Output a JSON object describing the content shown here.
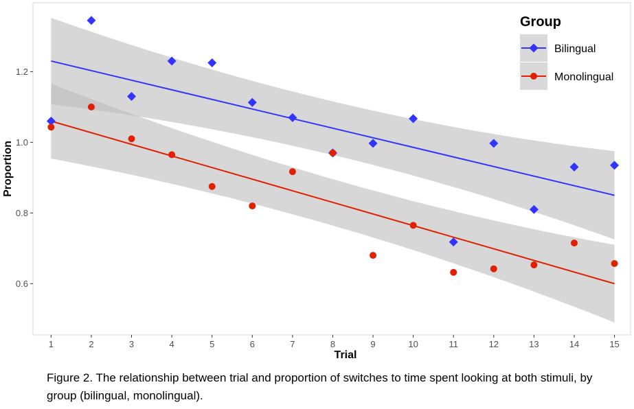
{
  "chart_data": {
    "type": "scatter",
    "title": "",
    "xlabel": "Trial",
    "ylabel": "Proportion",
    "x_ticks": [
      1,
      2,
      3,
      4,
      5,
      6,
      7,
      8,
      9,
      10,
      11,
      12,
      13,
      14,
      15
    ],
    "y_ticks": [
      0.6,
      0.8,
      1.0,
      1.2
    ],
    "y_tick_labels": [
      "0.6",
      "0.8",
      "1.0",
      "1.2"
    ],
    "xlim": [
      0.55,
      15.4
    ],
    "ylim": [
      0.455,
      1.395
    ],
    "grid": false,
    "legend": {
      "title": "Group",
      "placement": "top-right"
    },
    "series": [
      {
        "name": "Bilingual",
        "color": "#3333ff",
        "marker": "diamond",
        "x": [
          1,
          2,
          3,
          4,
          5,
          6,
          7,
          8,
          9,
          10,
          11,
          12,
          13,
          14,
          15
        ],
        "y": [
          1.06,
          1.345,
          1.13,
          1.23,
          1.225,
          1.113,
          1.07,
          0.97,
          0.997,
          1.067,
          0.718,
          0.997,
          0.81,
          0.93,
          0.935
        ],
        "fit": {
          "x": [
            1,
            15
          ],
          "y": [
            1.23,
            0.85
          ]
        },
        "band": {
          "x": [
            1,
            15
          ],
          "lower": [
            1.11,
            0.725
          ],
          "upper": [
            1.355,
            0.975
          ]
        }
      },
      {
        "name": "Monolingual",
        "color": "#e02000",
        "marker": "circle",
        "x": [
          1,
          2,
          3,
          4,
          5,
          6,
          7,
          8,
          9,
          10,
          11,
          12,
          13,
          14,
          15
        ],
        "y": [
          1.043,
          1.1,
          1.01,
          0.965,
          0.875,
          0.82,
          0.917,
          0.97,
          0.68,
          0.765,
          0.632,
          0.642,
          0.653,
          0.715,
          0.657
        ],
        "fit": {
          "x": [
            1,
            15
          ],
          "y": [
            1.06,
            0.6
          ]
        },
        "band": {
          "x": [
            1,
            15
          ],
          "lower": [
            0.955,
            0.49
          ],
          "upper": [
            1.167,
            0.71
          ]
        }
      }
    ]
  },
  "caption": {
    "label": "Figure 2.",
    "text": " The relationship between trial and proportion of switches to time spent looking at both stimuli, by group (bilingual, monolingual)."
  }
}
